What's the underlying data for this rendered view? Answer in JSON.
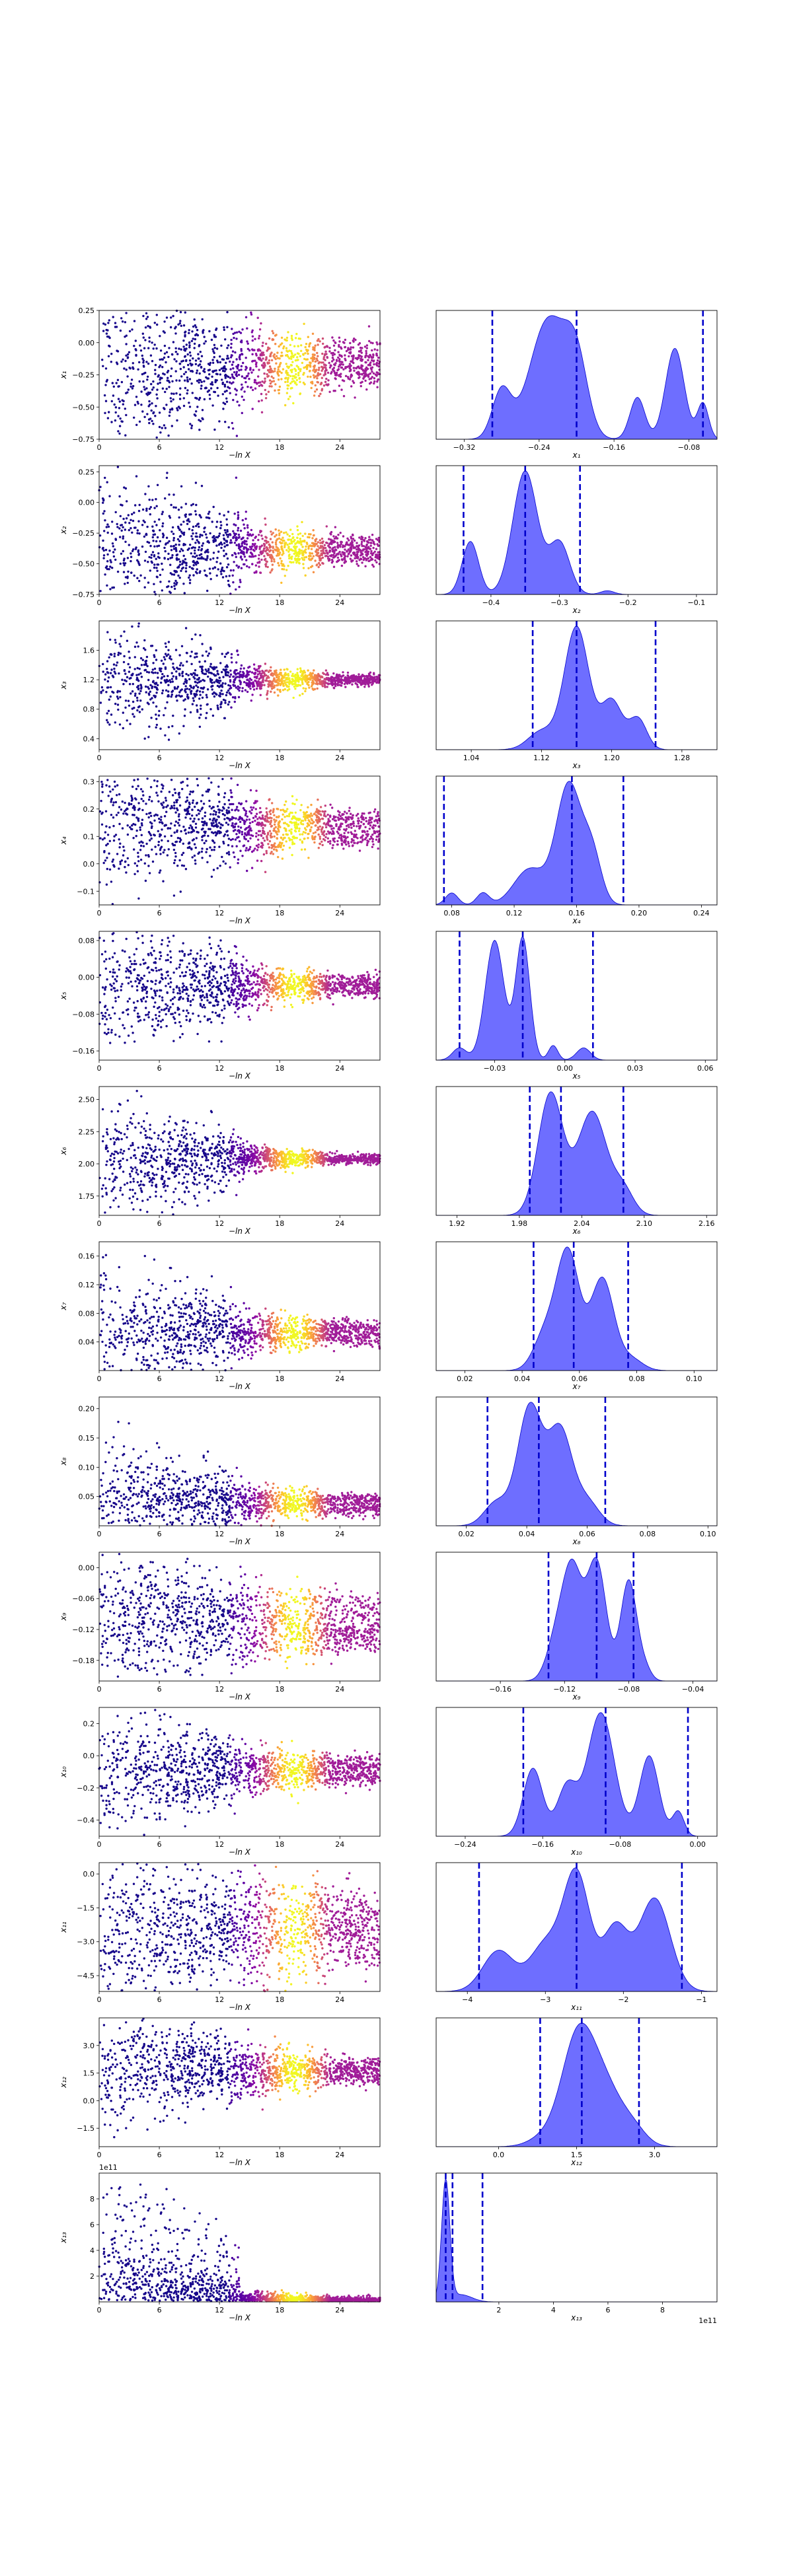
{
  "chart_data": {
    "type": "scatter",
    "colors": {
      "trace_colormap": "plasma",
      "kde_fill": "#6666ff",
      "kde_line": "#0000cc",
      "quantile_line": "#0000cc"
    },
    "trace_xlabel": "−ln X",
    "trace_xticks": [
      0,
      6,
      12,
      18,
      24
    ],
    "trace_xlim": [
      0,
      28
    ],
    "params": [
      {
        "name": "x1",
        "label": "x₁",
        "ylim": [
          -0.75,
          0.25
        ],
        "yticks": [
          -0.75,
          -0.5,
          -0.25,
          0.0,
          0.25
        ],
        "ytick_labels": [
          "−0.75",
          "−0.50",
          "−0.25",
          "0.00",
          "0.25"
        ],
        "converge": -0.2,
        "spread_start": 0.35,
        "spread_end": 0.06,
        "bands": [
          -0.06,
          -0.24,
          -0.2
        ],
        "kde": {
          "xlim": [
            -0.35,
            -0.05
          ],
          "xticks": [
            -0.32,
            -0.24,
            -0.16,
            -0.08
          ],
          "xtick_labels": [
            "−0.32",
            "−0.24",
            "−0.16",
            "−0.08"
          ],
          "quantiles": [
            -0.29,
            -0.2,
            -0.065
          ],
          "peaks": [
            [
              -0.28,
              0.4,
              0.01
            ],
            [
              -0.23,
              1.0,
              0.02
            ],
            [
              -0.2,
              0.55,
              0.012
            ],
            [
              -0.135,
              0.35,
              0.008
            ],
            [
              -0.095,
              0.76,
              0.01
            ],
            [
              -0.065,
              0.3,
              0.006
            ]
          ]
        }
      },
      {
        "name": "x2",
        "label": "x₂",
        "ylim": [
          -0.75,
          0.3
        ],
        "yticks": [
          -0.75,
          -0.5,
          -0.25,
          0.0,
          0.25
        ],
        "ytick_labels": [
          "−0.75",
          "−0.50",
          "−0.25",
          "0.00",
          "0.25"
        ],
        "converge": -0.36,
        "spread_start": 0.28,
        "spread_end": 0.04,
        "bands": [
          -0.43,
          -0.34
        ],
        "kde": {
          "xlim": [
            -0.48,
            -0.07
          ],
          "xticks": [
            -0.4,
            -0.3,
            -0.2,
            -0.1
          ],
          "xtick_labels": [
            "−0.4",
            "−0.3",
            "−0.2",
            "−0.1"
          ],
          "quantiles": [
            -0.44,
            -0.35,
            -0.27
          ],
          "peaks": [
            [
              -0.43,
              0.43,
              0.012
            ],
            [
              -0.35,
              1.0,
              0.018
            ],
            [
              -0.3,
              0.42,
              0.015
            ],
            [
              -0.23,
              0.03,
              0.01
            ]
          ]
        }
      },
      {
        "name": "x3",
        "label": "x₃",
        "ylim": [
          0.25,
          2.0
        ],
        "yticks": [
          0.4,
          0.8,
          1.2,
          1.6
        ],
        "ytick_labels": [
          "0.4",
          "0.8",
          "1.2",
          "1.6"
        ],
        "converge": 1.19,
        "spread_start": 0.35,
        "spread_end": 0.04,
        "bands": [
          1.2
        ],
        "kde": {
          "xlim": [
            1.0,
            1.32
          ],
          "xticks": [
            1.04,
            1.12,
            1.2,
            1.28
          ],
          "xtick_labels": [
            "1.04",
            "1.12",
            "1.20",
            "1.28"
          ],
          "quantiles": [
            1.11,
            1.16,
            1.25
          ],
          "peaks": [
            [
              1.12,
              0.15,
              0.015
            ],
            [
              1.16,
              1.0,
              0.014
            ],
            [
              1.2,
              0.4,
              0.012
            ],
            [
              1.23,
              0.25,
              0.01
            ]
          ]
        }
      },
      {
        "name": "x4",
        "label": "x₄",
        "ylim": [
          -0.15,
          0.32
        ],
        "yticks": [
          -0.1,
          0.0,
          0.1,
          0.2,
          0.3
        ],
        "ytick_labels": [
          "−0.1",
          "0.0",
          "0.1",
          "0.2",
          "0.3"
        ],
        "converge": 0.15,
        "spread_start": 0.12,
        "spread_end": 0.02,
        "bands": [
          0.1,
          0.16
        ],
        "kde": {
          "xlim": [
            0.07,
            0.25
          ],
          "xticks": [
            0.08,
            0.12,
            0.16,
            0.2,
            0.24
          ],
          "xtick_labels": [
            "0.08",
            "0.12",
            "0.16",
            "0.20",
            "0.24"
          ],
          "quantiles": [
            0.075,
            0.157,
            0.19
          ],
          "peaks": [
            [
              0.08,
              0.1,
              0.004
            ],
            [
              0.1,
              0.1,
              0.004
            ],
            [
              0.13,
              0.3,
              0.01
            ],
            [
              0.155,
              1.0,
              0.008
            ],
            [
              0.17,
              0.4,
              0.006
            ]
          ]
        }
      },
      {
        "name": "x5",
        "label": "x₅",
        "ylim": [
          -0.18,
          0.1
        ],
        "yticks": [
          -0.16,
          -0.08,
          0.0,
          0.08
        ],
        "ytick_labels": [
          "−0.16",
          "−0.08",
          "0.00",
          "0.08"
        ],
        "converge": -0.02,
        "spread_start": 0.07,
        "spread_end": 0.01,
        "bands": [
          -0.01,
          -0.025
        ],
        "kde": {
          "xlim": [
            -0.055,
            0.065
          ],
          "xticks": [
            -0.03,
            0.0,
            0.03,
            0.06
          ],
          "xtick_labels": [
            "−0.03",
            "0.00",
            "0.03",
            "0.06"
          ],
          "quantiles": [
            -0.045,
            -0.018,
            0.012
          ],
          "peaks": [
            [
              -0.045,
              0.1,
              0.003
            ],
            [
              -0.03,
              0.98,
              0.004
            ],
            [
              -0.018,
              1.0,
              0.003
            ],
            [
              -0.005,
              0.12,
              0.002
            ],
            [
              0.008,
              0.1,
              0.003
            ]
          ]
        }
      },
      {
        "name": "x6",
        "label": "x₆",
        "ylim": [
          1.6,
          2.6
        ],
        "yticks": [
          1.75,
          2.0,
          2.25,
          2.5
        ],
        "ytick_labels": [
          "1.75",
          "2.00",
          "2.25",
          "2.50"
        ],
        "converge": 2.04,
        "spread_start": 0.22,
        "spread_end": 0.02,
        "bands": [
          2.04
        ],
        "kde": {
          "xlim": [
            1.9,
            2.17
          ],
          "xticks": [
            1.92,
            1.98,
            2.04,
            2.1,
            2.16
          ],
          "xtick_labels": [
            "1.92",
            "1.98",
            "2.04",
            "2.10",
            "2.16"
          ],
          "quantiles": [
            1.99,
            2.02,
            2.08
          ],
          "peaks": [
            [
              2.01,
              1.0,
              0.012
            ],
            [
              2.05,
              0.85,
              0.014
            ],
            [
              2.08,
              0.2,
              0.01
            ]
          ]
        }
      },
      {
        "name": "x7",
        "label": "x₇",
        "ylim": [
          0.0,
          0.18
        ],
        "yticks": [
          0.04,
          0.08,
          0.12,
          0.16
        ],
        "ytick_labels": [
          "0.04",
          "0.08",
          "0.12",
          "0.16"
        ],
        "converge": 0.055,
        "spread_start": 0.04,
        "spread_end": 0.006,
        "bands": [
          0.045,
          0.06
        ],
        "kde": {
          "xlim": [
            0.01,
            0.108
          ],
          "xticks": [
            0.02,
            0.04,
            0.06,
            0.08,
            0.1
          ],
          "xtick_labels": [
            "0.02",
            "0.04",
            "0.06",
            "0.08",
            "0.10"
          ],
          "quantiles": [
            0.044,
            0.058,
            0.077
          ],
          "peaks": [
            [
              0.048,
              0.3,
              0.004
            ],
            [
              0.056,
              1.0,
              0.004
            ],
            [
              0.068,
              0.78,
              0.004
            ],
            [
              0.078,
              0.1,
              0.004
            ]
          ]
        }
      },
      {
        "name": "x8",
        "label": "x₈",
        "ylim": [
          0.0,
          0.22
        ],
        "yticks": [
          0.05,
          0.1,
          0.15,
          0.2
        ],
        "ytick_labels": [
          "0.05",
          "0.10",
          "0.15",
          "0.20"
        ],
        "converge": 0.04,
        "spread_start": 0.05,
        "spread_end": 0.006,
        "bands": [
          0.03,
          0.045
        ],
        "kde": {
          "xlim": [
            0.01,
            0.103
          ],
          "xticks": [
            0.02,
            0.04,
            0.06,
            0.08,
            0.1
          ],
          "xtick_labels": [
            "0.02",
            "0.04",
            "0.06",
            "0.08",
            "0.10"
          ],
          "quantiles": [
            0.027,
            0.044,
            0.066
          ],
          "peaks": [
            [
              0.03,
              0.2,
              0.004
            ],
            [
              0.041,
              1.0,
              0.004
            ],
            [
              0.051,
              0.8,
              0.004
            ],
            [
              0.06,
              0.2,
              0.004
            ]
          ]
        }
      },
      {
        "name": "x9",
        "label": "x₉",
        "ylim": [
          -0.22,
          0.03
        ],
        "yticks": [
          -0.18,
          -0.12,
          -0.06,
          0.0
        ],
        "ytick_labels": [
          "−0.18",
          "−0.12",
          "−0.06",
          "0.00"
        ],
        "converge": -0.1,
        "spread_start": 0.06,
        "spread_end": 0.015,
        "bands": [
          -0.08,
          -0.12,
          -0.14
        ],
        "kde": {
          "xlim": [
            -0.2,
            -0.025
          ],
          "xticks": [
            -0.16,
            -0.12,
            -0.08,
            -0.04
          ],
          "xtick_labels": [
            "−0.16",
            "−0.12",
            "−0.08",
            "−0.04"
          ],
          "quantiles": [
            -0.13,
            -0.1,
            -0.077
          ],
          "peaks": [
            [
              -0.125,
              0.35,
              0.006
            ],
            [
              -0.115,
              0.9,
              0.006
            ],
            [
              -0.1,
              1.0,
              0.006
            ],
            [
              -0.08,
              0.85,
              0.005
            ],
            [
              -0.07,
              0.1,
              0.004
            ]
          ]
        }
      },
      {
        "name": "x10",
        "label": "x₁₀",
        "ylim": [
          -0.5,
          0.3
        ],
        "yticks": [
          -0.4,
          -0.2,
          0.0,
          0.2
        ],
        "ytick_labels": [
          "−0.4",
          "−0.2",
          "0.0",
          "0.2"
        ],
        "converge": -0.1,
        "spread_start": 0.18,
        "spread_end": 0.03,
        "bands": [
          -0.05,
          -0.13
        ],
        "kde": {
          "xlim": [
            -0.27,
            0.02
          ],
          "xticks": [
            -0.24,
            -0.16,
            -0.08,
            0.0
          ],
          "xtick_labels": [
            "−0.24",
            "−0.16",
            "−0.08",
            "0.00"
          ],
          "quantiles": [
            -0.18,
            -0.095,
            -0.01
          ],
          "peaks": [
            [
              -0.17,
              0.55,
              0.01
            ],
            [
              -0.135,
              0.4,
              0.01
            ],
            [
              -0.1,
              1.0,
              0.014
            ],
            [
              -0.05,
              0.65,
              0.01
            ],
            [
              -0.02,
              0.2,
              0.006
            ]
          ]
        }
      },
      {
        "name": "x11",
        "label": "x₁₁",
        "ylim": [
          -5.2,
          0.5
        ],
        "yticks": [
          -4.5,
          -3.0,
          -1.5,
          0.0
        ],
        "ytick_labels": [
          "−4.5",
          "−3.0",
          "−1.5",
          "0.0"
        ],
        "converge": -2.4,
        "spread_start": 1.2,
        "spread_end": 0.6,
        "bands": [
          -1.6,
          -2.5,
          -3.3
        ],
        "kde": {
          "xlim": [
            -4.4,
            -0.8
          ],
          "xticks": [
            -4,
            -3,
            -2,
            -1
          ],
          "xtick_labels": [
            "−4",
            "−3",
            "−2",
            "−1"
          ],
          "quantiles": [
            -3.85,
            -2.6,
            -1.25
          ],
          "peaks": [
            [
              -3.6,
              0.35,
              0.2
            ],
            [
              -3.0,
              0.4,
              0.2
            ],
            [
              -2.6,
              1.0,
              0.17
            ],
            [
              -2.1,
              0.55,
              0.16
            ],
            [
              -1.6,
              0.8,
              0.2
            ]
          ]
        }
      },
      {
        "name": "x12",
        "label": "x₁₂",
        "ylim": [
          -2.5,
          4.5
        ],
        "yticks": [
          -1.5,
          0.0,
          1.5,
          3.0
        ],
        "ytick_labels": [
          "−1.5",
          "0.0",
          "1.5",
          "3.0"
        ],
        "converge": 1.7,
        "spread_start": 1.3,
        "spread_end": 0.3,
        "bands": [
          1.8,
          1.4
        ],
        "kde": {
          "xlim": [
            -1.2,
            4.2
          ],
          "xticks": [
            0.0,
            1.5,
            3.0
          ],
          "xtick_labels": [
            "0.0",
            "1.5",
            "3.0"
          ],
          "quantiles": [
            0.8,
            1.6,
            2.7
          ],
          "peaks": [
            [
              0.9,
              0.1,
              0.3
            ],
            [
              1.5,
              1.0,
              0.3
            ],
            [
              2.0,
              0.65,
              0.35
            ],
            [
              2.6,
              0.15,
              0.25
            ]
          ]
        }
      },
      {
        "name": "x13",
        "label": "x₁₃",
        "ylim": [
          0,
          10.0
        ],
        "yticks": [
          2,
          4,
          6,
          8
        ],
        "ytick_labels": [
          "2",
          "4",
          "6",
          "8"
        ],
        "converge": 0.3,
        "spread_start": 9.0,
        "spread_end": 0.6,
        "bands": [
          0.2
        ],
        "exponent": "1e11",
        "kde": {
          "xlim": [
            -0.3,
            10.0
          ],
          "xticks": [
            2,
            4,
            6,
            8
          ],
          "xtick_labels": [
            "2",
            "4",
            "6",
            "8"
          ],
          "quantiles": [
            0.05,
            0.3,
            1.4
          ],
          "peaks": [
            [
              0.05,
              1.0,
              0.15
            ],
            [
              0.6,
              0.06,
              0.4
            ]
          ],
          "exponent": "1e11"
        }
      }
    ]
  }
}
